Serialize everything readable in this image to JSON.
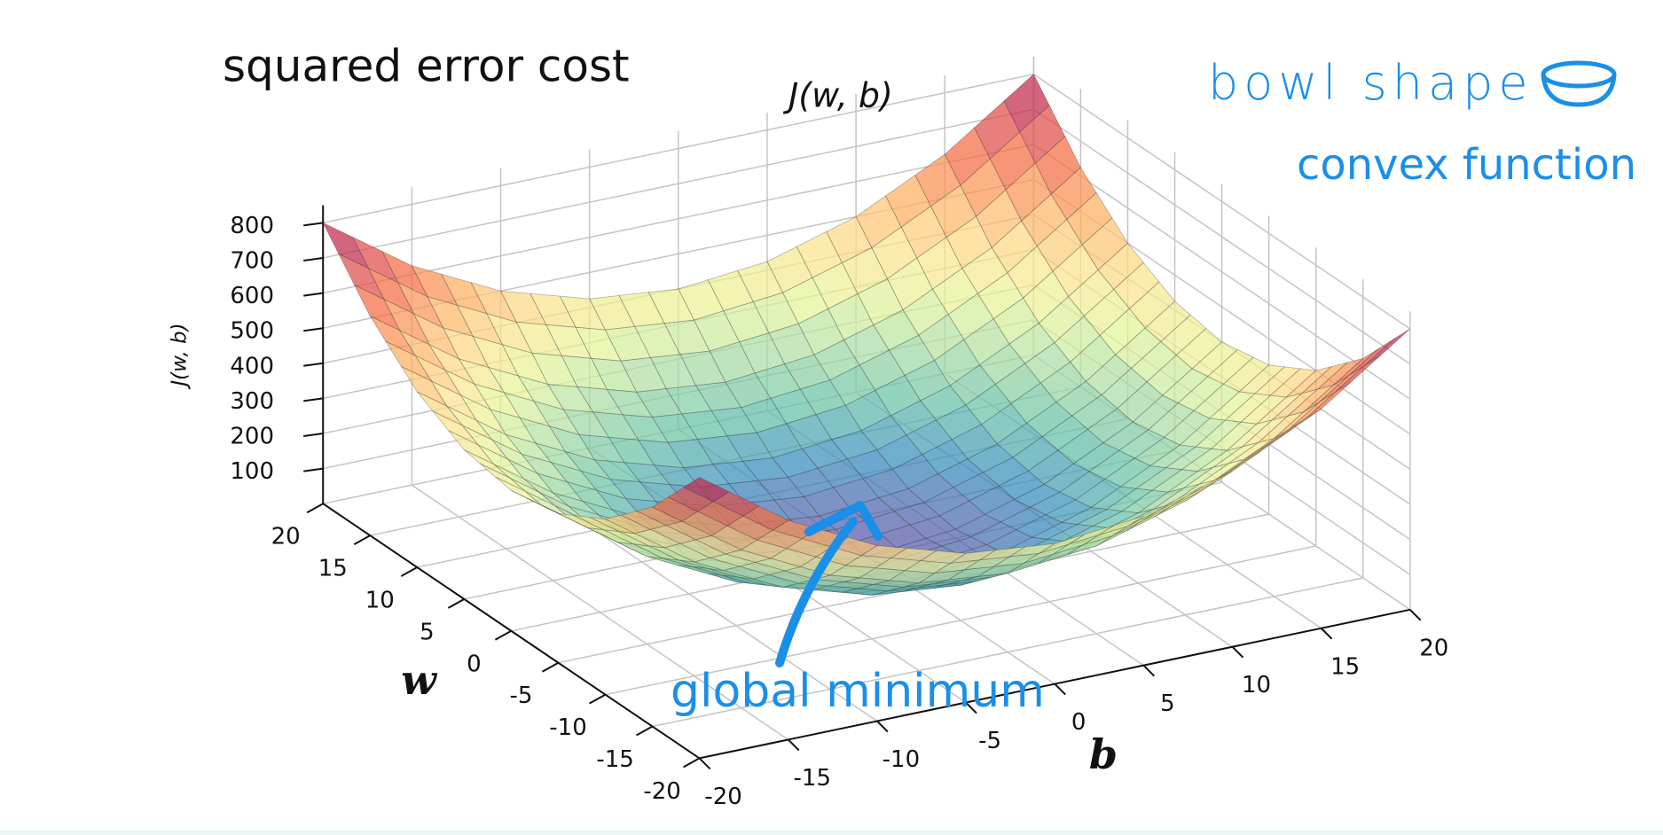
{
  "chart_data": {
    "type": "surface",
    "title": "squared error cost",
    "axes_title": "J(w, b)",
    "zlabel": "J(w, b)",
    "xlabel": "b",
    "ylabel": "w",
    "annotations": [
      "bowl shape",
      "convex function",
      "global minimum"
    ],
    "x": [
      -20,
      -15,
      -10,
      -5,
      0,
      5,
      10,
      15,
      20
    ],
    "y": [
      -20,
      -15,
      -10,
      -5,
      0,
      5,
      10,
      15,
      20
    ],
    "z": [
      [
        800,
        625,
        500,
        425,
        400,
        425,
        500,
        625,
        800
      ],
      [
        625,
        450,
        325,
        250,
        225,
        250,
        325,
        450,
        625
      ],
      [
        500,
        325,
        200,
        125,
        100,
        125,
        200,
        325,
        500
      ],
      [
        425,
        250,
        125,
        50,
        25,
        50,
        125,
        250,
        425
      ],
      [
        400,
        225,
        100,
        25,
        0,
        25,
        100,
        225,
        400
      ],
      [
        425,
        250,
        125,
        50,
        25,
        50,
        125,
        250,
        425
      ],
      [
        500,
        325,
        200,
        125,
        100,
        125,
        200,
        325,
        500
      ],
      [
        625,
        450,
        325,
        250,
        225,
        250,
        325,
        450,
        625
      ],
      [
        800,
        625,
        500,
        425,
        400,
        425,
        500,
        625,
        800
      ]
    ],
    "xlim": [
      -20,
      20
    ],
    "ylim": [
      -20,
      20
    ],
    "zlim": [
      0,
      850
    ],
    "xticks": [
      -20,
      -15,
      -10,
      -5,
      0,
      5,
      10,
      15,
      20
    ],
    "yticks": [
      -20,
      -15,
      -10,
      -5,
      0,
      5,
      10,
      15,
      20
    ],
    "zticks": [
      100,
      200,
      300,
      400,
      500,
      600,
      700,
      800
    ],
    "colormap": [
      "#5e4fa2",
      "#3288bd",
      "#66c2a5",
      "#abdda4",
      "#e6f598",
      "#fee08b",
      "#fdae61",
      "#f46d43",
      "#d53e4f",
      "#9e0142"
    ],
    "alpha": 0.72,
    "grid": true
  }
}
